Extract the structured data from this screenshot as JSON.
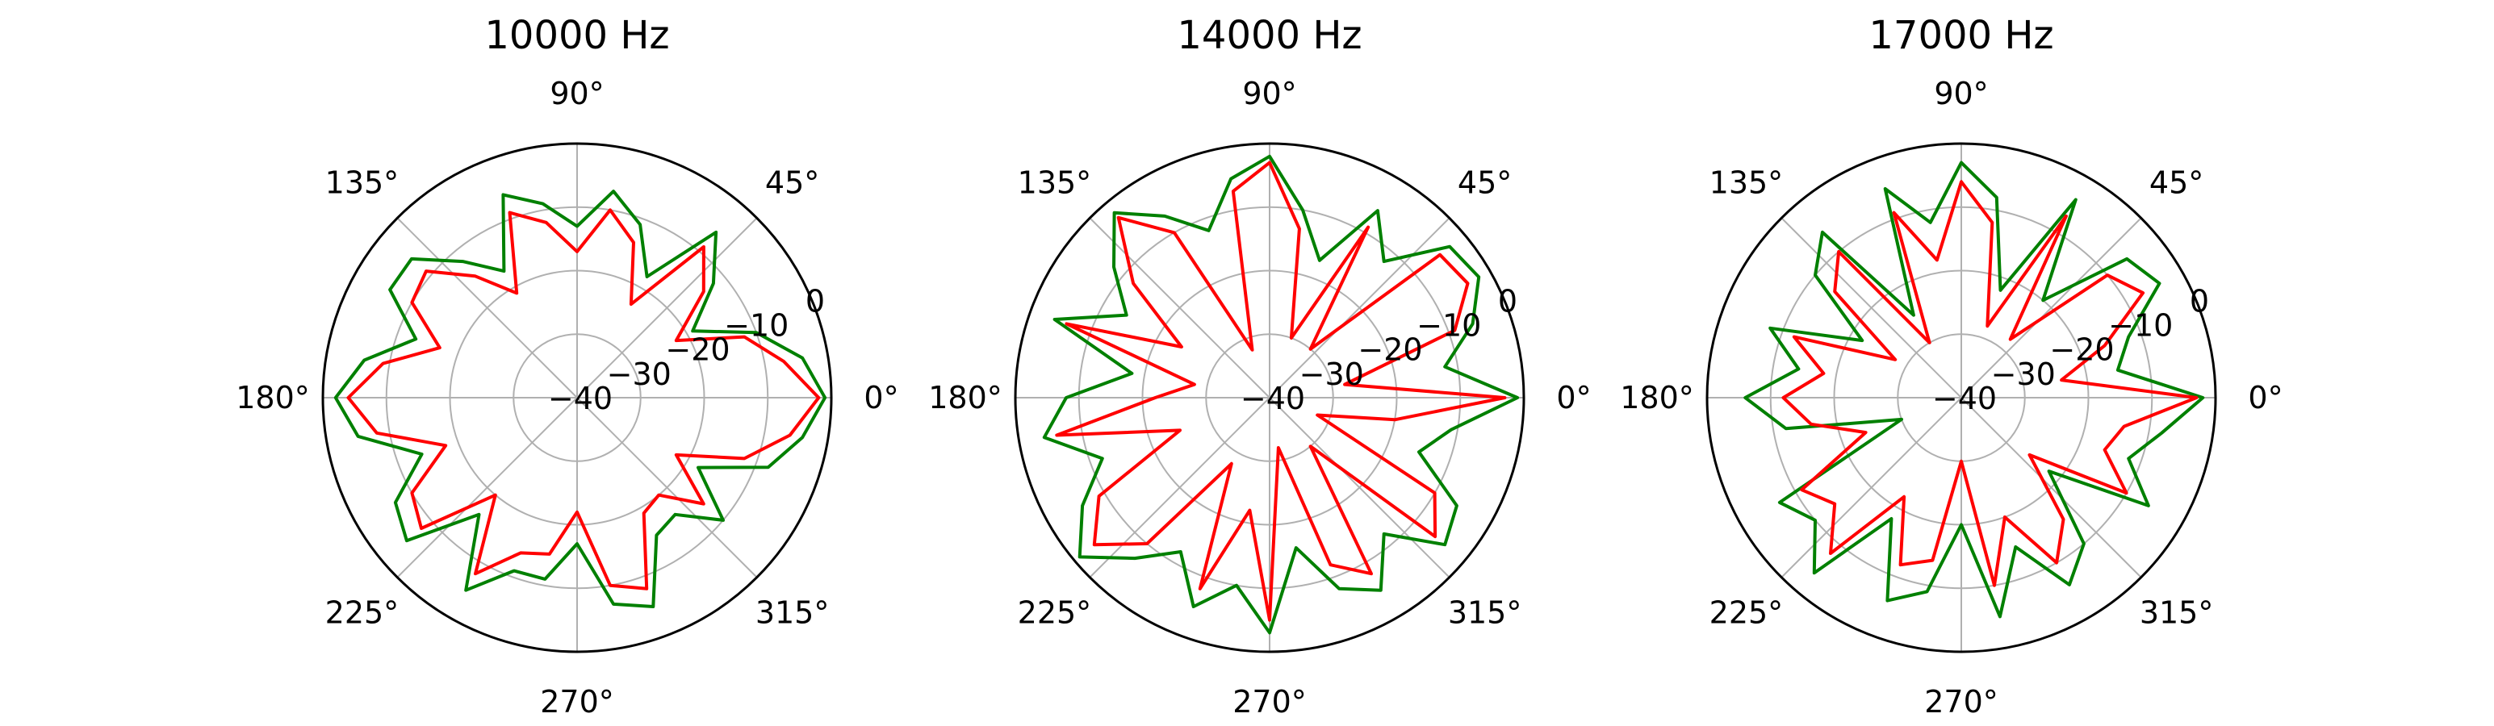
{
  "chart_data": [
    {
      "type": "line",
      "subtype": "polar",
      "title": "10000 Hz",
      "angle_unit": "deg",
      "angle_ticks": [
        "0°",
        "45°",
        "90°",
        "135°",
        "180°",
        "225°",
        "270°",
        "315°"
      ],
      "radial_ticks": [
        "−40",
        "−30",
        "−20",
        "−10",
        "0"
      ],
      "rlim": [
        -40,
        0
      ],
      "grid": true,
      "theta": [
        0,
        10,
        20,
        30,
        40,
        50,
        60,
        70,
        80,
        90,
        100,
        110,
        120,
        130,
        140,
        150,
        160,
        170,
        180,
        190,
        200,
        210,
        220,
        230,
        240,
        250,
        260,
        270,
        280,
        290,
        300,
        310,
        320,
        330,
        340,
        350
      ],
      "series": [
        {
          "color": "#008000",
          "values": [
            -1,
            -4,
            -10,
            -19,
            -12,
            -6,
            -18,
            -11,
            -7,
            -13,
            -9,
            -6,
            -17,
            -12,
            -6,
            -6,
            -13,
            -6,
            -2,
            -5,
            -14,
            -7,
            -5,
            -16,
            -5,
            -11,
            -11,
            -17,
            -7,
            -5,
            -15,
            -16,
            -10,
            -18,
            -8,
            -4
          ]
        },
        {
          "color": "#ff0000",
          "values": [
            -2,
            -7,
            -12,
            -22,
            -14,
            -9,
            -23,
            -14,
            -10,
            -17,
            -12,
            -9,
            -21,
            -15,
            -9,
            -10,
            -17,
            -9,
            -4,
            -8,
            -18,
            -10,
            -8,
            -20,
            -8,
            -14,
            -15,
            -22,
            -10,
            -8,
            -19,
            -20,
            -14,
            -22,
            -12,
            -6
          ]
        }
      ]
    },
    {
      "type": "line",
      "subtype": "polar",
      "title": "14000 Hz",
      "angle_unit": "deg",
      "angle_ticks": [
        "0°",
        "45°",
        "90°",
        "135°",
        "180°",
        "225°",
        "270°",
        "315°"
      ],
      "radial_ticks": [
        "−40",
        "−30",
        "−20",
        "−10",
        "0"
      ],
      "rlim": [
        -40,
        0
      ],
      "grid": true,
      "theta": [
        0,
        10,
        20,
        30,
        40,
        50,
        60,
        70,
        80,
        90,
        100,
        110,
        120,
        130,
        140,
        150,
        160,
        170,
        180,
        190,
        200,
        210,
        220,
        230,
        240,
        250,
        260,
        270,
        280,
        290,
        300,
        310,
        320,
        330,
        340,
        350
      ],
      "series": [
        {
          "color": "#008000",
          "values": [
            -1,
            -12,
            -6,
            -2,
            -3,
            -12,
            -6,
            -17,
            -10,
            -2,
            -5,
            -12,
            -7,
            -2,
            -8,
            -14,
            -4,
            -18,
            -8,
            -4,
            -12,
            -6,
            -1,
            -7,
            -12,
            -5,
            -10,
            -3,
            -16,
            -8,
            -5,
            -12,
            -4,
            -6,
            -15,
            -11
          ]
        },
        {
          "color": "#ff0000",
          "values": [
            -3,
            -28,
            -9,
            -4,
            -5,
            -30,
            -9,
            -30,
            -13,
            -3,
            -7,
            -32,
            -10,
            -3,
            -12,
            -24,
            -6,
            -28,
            -22,
            -6,
            -25,
            -9,
            -4,
            -10,
            -28,
            -8,
            -22,
            -5,
            -32,
            -12,
            -8,
            -30,
            -6,
            -10,
            -32,
            -20
          ]
        }
      ]
    },
    {
      "type": "line",
      "subtype": "polar",
      "title": "17000 Hz",
      "angle_unit": "deg",
      "angle_ticks": [
        "0°",
        "45°",
        "90°",
        "135°",
        "180°",
        "225°",
        "270°",
        "315°"
      ],
      "radial_ticks": [
        "−40",
        "−30",
        "−20",
        "−10",
        "0"
      ],
      "rlim": [
        -40,
        0
      ],
      "grid": true,
      "theta": [
        0,
        10,
        20,
        30,
        40,
        50,
        60,
        70,
        80,
        90,
        100,
        110,
        120,
        130,
        140,
        150,
        160,
        170,
        180,
        190,
        200,
        210,
        220,
        230,
        240,
        250,
        260,
        270,
        280,
        290,
        300,
        310,
        320,
        330,
        340,
        350
      ],
      "series": [
        {
          "color": "#008000",
          "values": [
            -2,
            -15,
            -12,
            -4,
            -6,
            -20,
            -4,
            -22,
            -8,
            -3,
            -12,
            -5,
            -25,
            -6,
            -10,
            -22,
            -8,
            -14,
            -6,
            -12,
            -30,
            -7,
            -10,
            -4,
            -18,
            -6,
            -9,
            -20,
            -5,
            -15,
            -6,
            -10,
            -22,
            -6,
            -12,
            -8
          ]
        },
        {
          "color": "#ff0000",
          "values": [
            -3,
            -24,
            -16,
            -7,
            -10,
            -28,
            -7,
            -28,
            -12,
            -6,
            -18,
            -9,
            -30,
            -10,
            -14,
            -28,
            -12,
            -18,
            -12,
            -16,
            -24,
            -11,
            -14,
            -8,
            -22,
            -12,
            -14,
            -30,
            -10,
            -20,
            -10,
            -15,
            -26,
            -10,
            -16,
            -14
          ]
        }
      ]
    }
  ]
}
